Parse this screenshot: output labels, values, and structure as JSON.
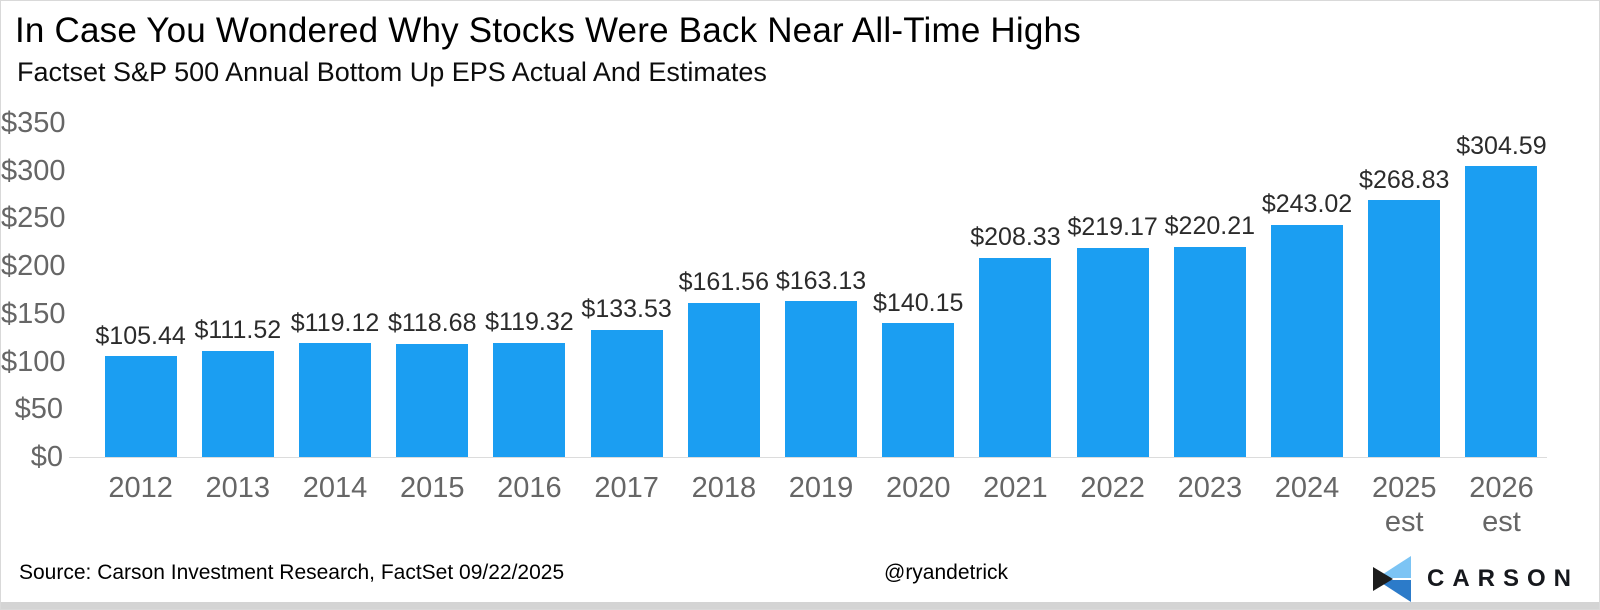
{
  "header": {
    "title": "In Case You Wondered Why Stocks Were Back Near All-Time Highs",
    "subtitle": "Factset S&P 500 Annual Bottom Up EPS Actual And Estimates"
  },
  "chart_data": {
    "type": "bar",
    "title": "In Case You Wondered Why Stocks Were Back Near All-Time Highs",
    "subtitle": "Factset S&P 500 Annual Bottom Up EPS Actual And Estimates",
    "categories": [
      "2012",
      "2013",
      "2014",
      "2015",
      "2016",
      "2017",
      "2018",
      "2019",
      "2020",
      "2021",
      "2022",
      "2023",
      "2024",
      "2025 est",
      "2026 est"
    ],
    "values": [
      105.44,
      111.52,
      119.12,
      118.68,
      119.32,
      133.53,
      161.56,
      163.13,
      140.15,
      208.33,
      219.17,
      220.21,
      243.02,
      268.83,
      304.59
    ],
    "data_label_prefix": "$",
    "xlabel": "",
    "ylabel": "",
    "ylim": [
      0,
      350
    ],
    "ytick_step": 50,
    "ytick_prefix": "$",
    "grid": false,
    "legend": "none",
    "bar_color": "#1b9ef2"
  },
  "footer": {
    "source": "Source: Carson Investment Research, FactSet 09/22/2025",
    "handle": "@ryandetrick",
    "brand": "CARSON"
  },
  "colors": {
    "bar": "#1b9ef2",
    "axis_text": "#666666",
    "data_label_text": "#2b2b2b",
    "baseline": "#dcdcdc",
    "logo_light_blue": "#7cc4f4",
    "logo_dark_blue": "#2c7bc9",
    "logo_black": "#1c1c1c",
    "brand_text": "#16181d"
  }
}
